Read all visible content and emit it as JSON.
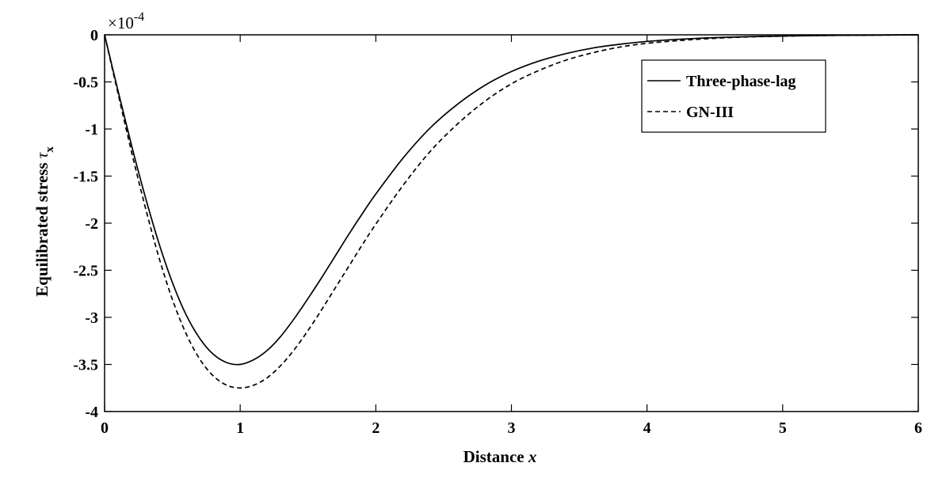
{
  "chart_data": {
    "type": "line",
    "xlabel": "Distance",
    "xlabel_var": "x",
    "ylabel": "Equilibrated stress",
    "ylabel_symbol": "τ",
    "ylabel_subscript": "x",
    "y_scale_text": "×10",
    "y_scale_exponent": "-4",
    "xlim": [
      0,
      6
    ],
    "ylim": [
      -4,
      0
    ],
    "xticks": [
      "0",
      "1",
      "2",
      "3",
      "4",
      "5",
      "6"
    ],
    "yticks": [
      "0",
      "-0.5",
      "-1",
      "-1.5",
      "-2",
      "-2.5",
      "-3",
      "-3.5",
      "-4"
    ],
    "grid": false,
    "legend_position": "top-right",
    "series": [
      {
        "name": "Three-phase-lag",
        "style": "solid",
        "color": "#000000",
        "x": [
          0,
          0.1,
          0.2,
          0.3,
          0.4,
          0.5,
          0.6,
          0.7,
          0.8,
          0.9,
          1.0,
          1.1,
          1.2,
          1.3,
          1.4,
          1.5,
          1.6,
          1.7,
          1.8,
          1.9,
          2.0,
          2.2,
          2.4,
          2.6,
          2.8,
          3.0,
          3.2,
          3.4,
          3.6,
          3.8,
          4.0,
          4.2,
          4.4,
          4.6,
          4.8,
          5.0,
          5.2,
          5.4,
          5.6,
          5.8,
          6.0
        ],
        "values": [
          0,
          -0.6,
          -1.18,
          -1.72,
          -2.21,
          -2.63,
          -2.97,
          -3.22,
          -3.39,
          -3.48,
          -3.5,
          -3.45,
          -3.35,
          -3.2,
          -3.01,
          -2.8,
          -2.58,
          -2.35,
          -2.12,
          -1.9,
          -1.69,
          -1.31,
          -0.99,
          -0.74,
          -0.54,
          -0.39,
          -0.28,
          -0.2,
          -0.14,
          -0.1,
          -0.07,
          -0.05,
          -0.035,
          -0.025,
          -0.018,
          -0.013,
          -0.009,
          -0.006,
          -0.004,
          -0.002,
          0
        ]
      },
      {
        "name": "GN-III",
        "style": "dashed",
        "color": "#000000",
        "x": [
          0,
          0.1,
          0.2,
          0.3,
          0.4,
          0.5,
          0.6,
          0.7,
          0.8,
          0.9,
          1.0,
          1.1,
          1.2,
          1.3,
          1.4,
          1.5,
          1.6,
          1.7,
          1.8,
          1.9,
          2.0,
          2.2,
          2.4,
          2.6,
          2.8,
          3.0,
          3.2,
          3.4,
          3.6,
          3.8,
          4.0,
          4.2,
          4.4,
          4.6,
          4.8,
          5.0,
          5.2,
          5.4,
          5.6,
          5.8,
          6.0
        ],
        "values": [
          0,
          -0.63,
          -1.25,
          -1.83,
          -2.36,
          -2.81,
          -3.17,
          -3.44,
          -3.62,
          -3.72,
          -3.75,
          -3.72,
          -3.64,
          -3.51,
          -3.34,
          -3.14,
          -2.92,
          -2.69,
          -2.46,
          -2.23,
          -2.01,
          -1.6,
          -1.24,
          -0.95,
          -0.71,
          -0.52,
          -0.38,
          -0.27,
          -0.19,
          -0.13,
          -0.09,
          -0.065,
          -0.045,
          -0.03,
          -0.02,
          -0.014,
          -0.009,
          -0.006,
          -0.004,
          -0.002,
          0
        ]
      }
    ]
  }
}
